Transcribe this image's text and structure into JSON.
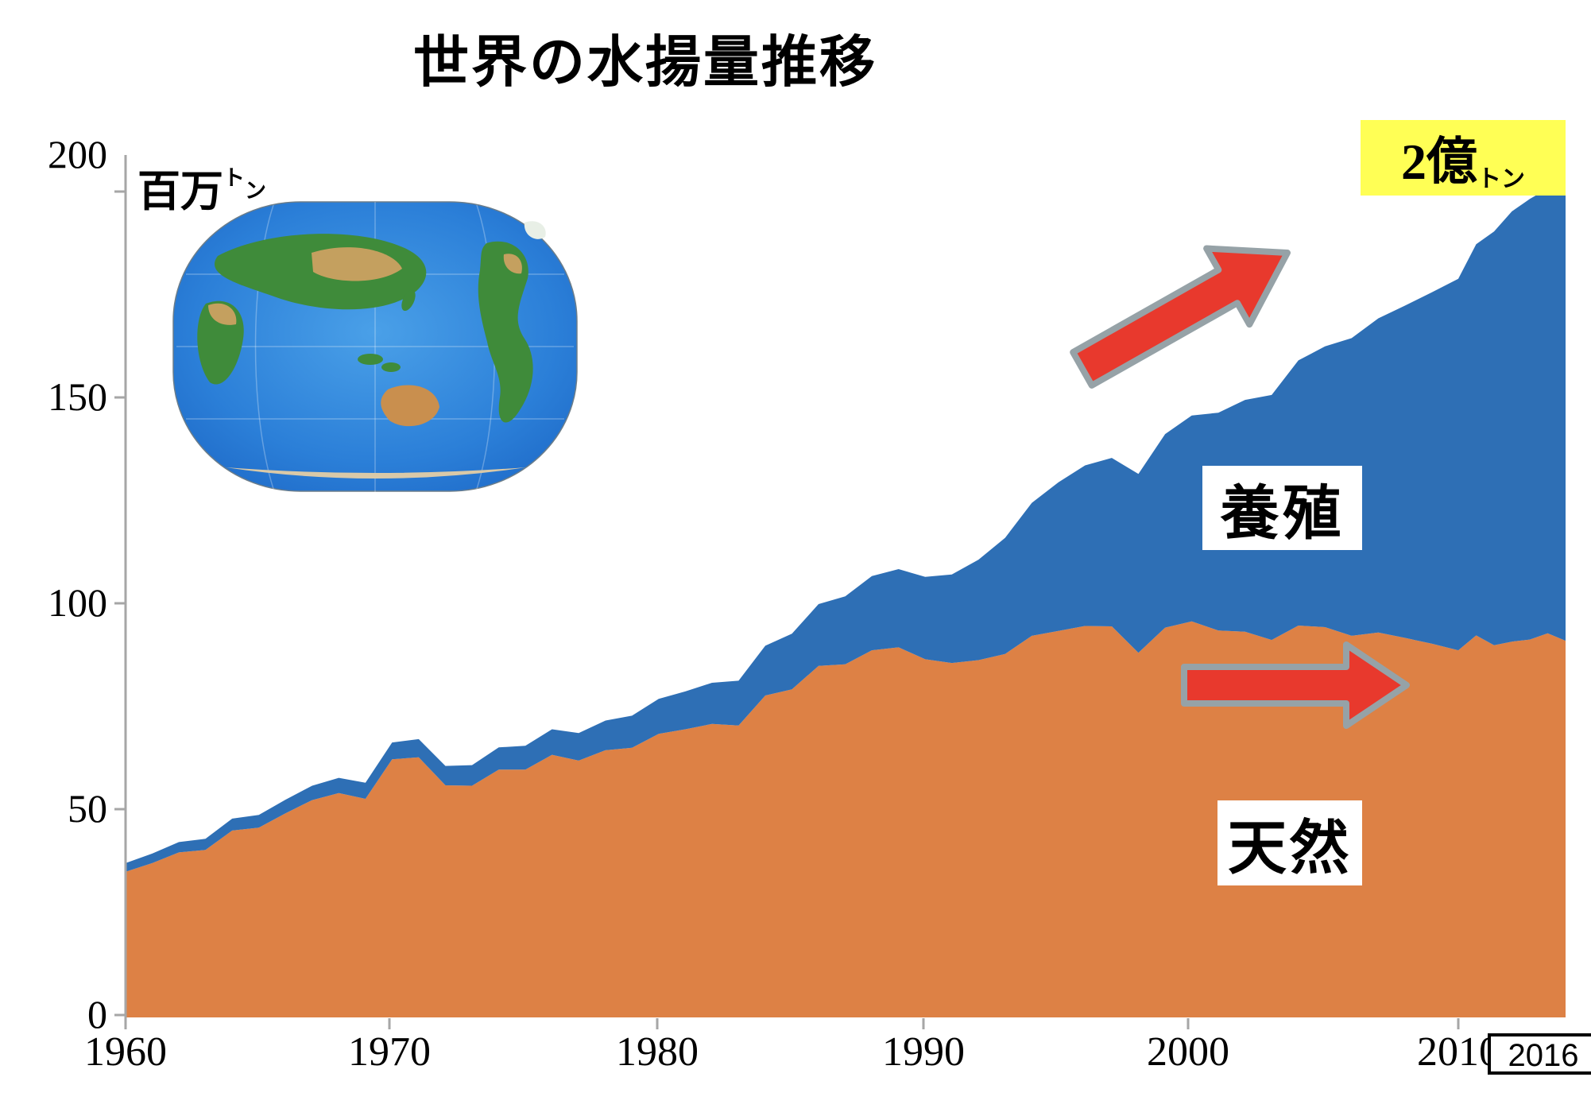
{
  "title": "世界の水揚量推移",
  "y_axis": {
    "unit_label": "百万",
    "unit_sup_1": "ト",
    "unit_sup_2": "ン",
    "ticks": [
      "200",
      "150",
      "100",
      "50",
      "0"
    ]
  },
  "x_axis": {
    "ticks": [
      "1960",
      "1970",
      "1980",
      "1990",
      "2000",
      "2010"
    ],
    "end_label": "2016"
  },
  "annotations": {
    "total_callout_main": "2億",
    "total_callout_sup_1": "ト",
    "total_callout_sup_2": "ン",
    "aquaculture_label": "養殖",
    "wild_label": "天然",
    "highlight_color": "#FFFF55"
  },
  "colors": {
    "wild_area": "#DD8145",
    "aquaculture_area": "#2E6FB5",
    "arrow_fill": "#E8392D",
    "arrow_stroke": "#96A2A7",
    "axis": "#A6A6A6",
    "text": "#000000"
  },
  "chart_data": {
    "type": "area",
    "stacked": true,
    "title": "世界の水揚量推移",
    "xlabel": "",
    "ylabel": "百万トン",
    "ylim": [
      0,
      200
    ],
    "grid": false,
    "legend_position": "labels-in-plot",
    "x": {
      "start": 1960,
      "end": 2016,
      "step": 1
    },
    "series": [
      {
        "name": "天然",
        "color": "#DD8145",
        "values": [
          34.8,
          36.9,
          39.5,
          40.1,
          44.8,
          45.5,
          49.0,
          52.2,
          53.9,
          52.5,
          62.1,
          62.6,
          55.8,
          55.7,
          59.6,
          59.6,
          63.2,
          61.8,
          64.3,
          64.9,
          68.3,
          69.4,
          70.7,
          70.3,
          77.6,
          79.1,
          84.8,
          85.2,
          88.6,
          89.3,
          86.4,
          85.5,
          86.2,
          87.7,
          92.1,
          93.3,
          94.5,
          94.4,
          88.0,
          94.1,
          95.6,
          93.4,
          93.1,
          91.1,
          94.6,
          94.2,
          92.1,
          92.9,
          91.6,
          90.2,
          88.6,
          92.2,
          89.8,
          90.7,
          91.2,
          92.7,
          90.9
        ]
      },
      {
        "name": "養殖",
        "color": "#2E6FB5",
        "values": [
          2.1,
          2.3,
          2.5,
          2.7,
          2.9,
          3.1,
          3.3,
          3.5,
          3.7,
          3.9,
          4.1,
          4.4,
          4.7,
          5.0,
          5.4,
          5.8,
          6.2,
          6.7,
          7.2,
          7.8,
          8.5,
          9.2,
          10.0,
          10.9,
          12.1,
          13.5,
          15.0,
          16.5,
          18.0,
          19.0,
          20.0,
          21.5,
          24.4,
          28.2,
          32.3,
          36.1,
          39.0,
          40.9,
          43.4,
          47.0,
          50.0,
          52.9,
          56.3,
          59.5,
          64.4,
          68.2,
          72.3,
          76.3,
          80.7,
          85.3,
          90.2,
          95.0,
          100.5,
          104.5,
          107.0,
          108.0,
          109.5
        ]
      }
    ],
    "annotations": [
      {
        "text": "2億トン",
        "x": 2016,
        "y": 200,
        "style": "yellow-highlight"
      },
      {
        "text": "養殖",
        "x": 2002,
        "y": 118,
        "style": "white-box"
      },
      {
        "text": "天然",
        "x": 2003,
        "y": 37,
        "style": "white-box"
      },
      {
        "text": "2016",
        "x": 2016,
        "y": 0,
        "style": "boxed-axis-label"
      }
    ]
  }
}
